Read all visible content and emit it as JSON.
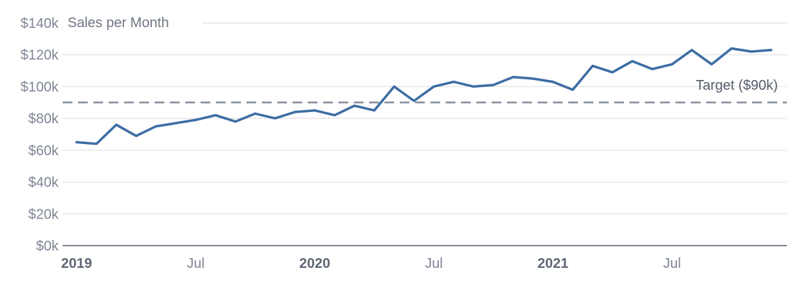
{
  "chart_data": {
    "type": "line",
    "title": "Sales per Month",
    "x": [
      "Jan 2019",
      "Feb 2019",
      "Mar 2019",
      "Apr 2019",
      "May 2019",
      "Jun 2019",
      "Jul 2019",
      "Aug 2019",
      "Sep 2019",
      "Oct 2019",
      "Nov 2019",
      "Dec 2019",
      "Jan 2020",
      "Feb 2020",
      "Mar 2020",
      "Apr 2020",
      "May 2020",
      "Jun 2020",
      "Jul 2020",
      "Aug 2020",
      "Sep 2020",
      "Oct 2020",
      "Nov 2020",
      "Dec 2020",
      "Jan 2021",
      "Feb 2021",
      "Mar 2021",
      "Apr 2021",
      "May 2021",
      "Jun 2021",
      "Jul 2021",
      "Aug 2021",
      "Sep 2021",
      "Oct 2021",
      "Nov 2021",
      "Dec 2021"
    ],
    "values_k": [
      65,
      64,
      76,
      69,
      75,
      77,
      79,
      82,
      78,
      83,
      80,
      84,
      85,
      82,
      88,
      85,
      100,
      91,
      100,
      103,
      100,
      101,
      106,
      105,
      103,
      98,
      113,
      109,
      116,
      111,
      114,
      123,
      114,
      124,
      122,
      123
    ],
    "unit": "$k",
    "ylim_k": [
      0,
      140
    ],
    "y_tick_step_k": 20,
    "y_ticks": [
      {
        "value_k": 0,
        "label": "$0k"
      },
      {
        "value_k": 20,
        "label": "$20k"
      },
      {
        "value_k": 40,
        "label": "$40k"
      },
      {
        "value_k": 60,
        "label": "$60k"
      },
      {
        "value_k": 80,
        "label": "$80k"
      },
      {
        "value_k": 100,
        "label": "$100k"
      },
      {
        "value_k": 120,
        "label": "$120k"
      },
      {
        "value_k": 140,
        "label": "$140k"
      }
    ],
    "x_ticks": [
      {
        "month_index": 0,
        "label": "2019",
        "bold": true
      },
      {
        "month_index": 6,
        "label": "Jul",
        "bold": false
      },
      {
        "month_index": 12,
        "label": "2020",
        "bold": true
      },
      {
        "month_index": 18,
        "label": "Jul",
        "bold": false
      },
      {
        "month_index": 24,
        "label": "2021",
        "bold": true
      },
      {
        "month_index": 30,
        "label": "Jul",
        "bold": false
      }
    ],
    "target": {
      "label": "Target ($90k)",
      "value_k": 90,
      "style": "dashed"
    },
    "grid": "horizontal",
    "legend": "none",
    "colors": {
      "line": "#3d6da4",
      "grid": "#e0e2e6",
      "axis": "#7f8591",
      "tick_label": "#7d8593",
      "year_tick_label": "#5f6774",
      "title": "#6f7683",
      "target_line": "#868e9a",
      "target_label": "#565e6c",
      "background": "#ffffff"
    }
  }
}
